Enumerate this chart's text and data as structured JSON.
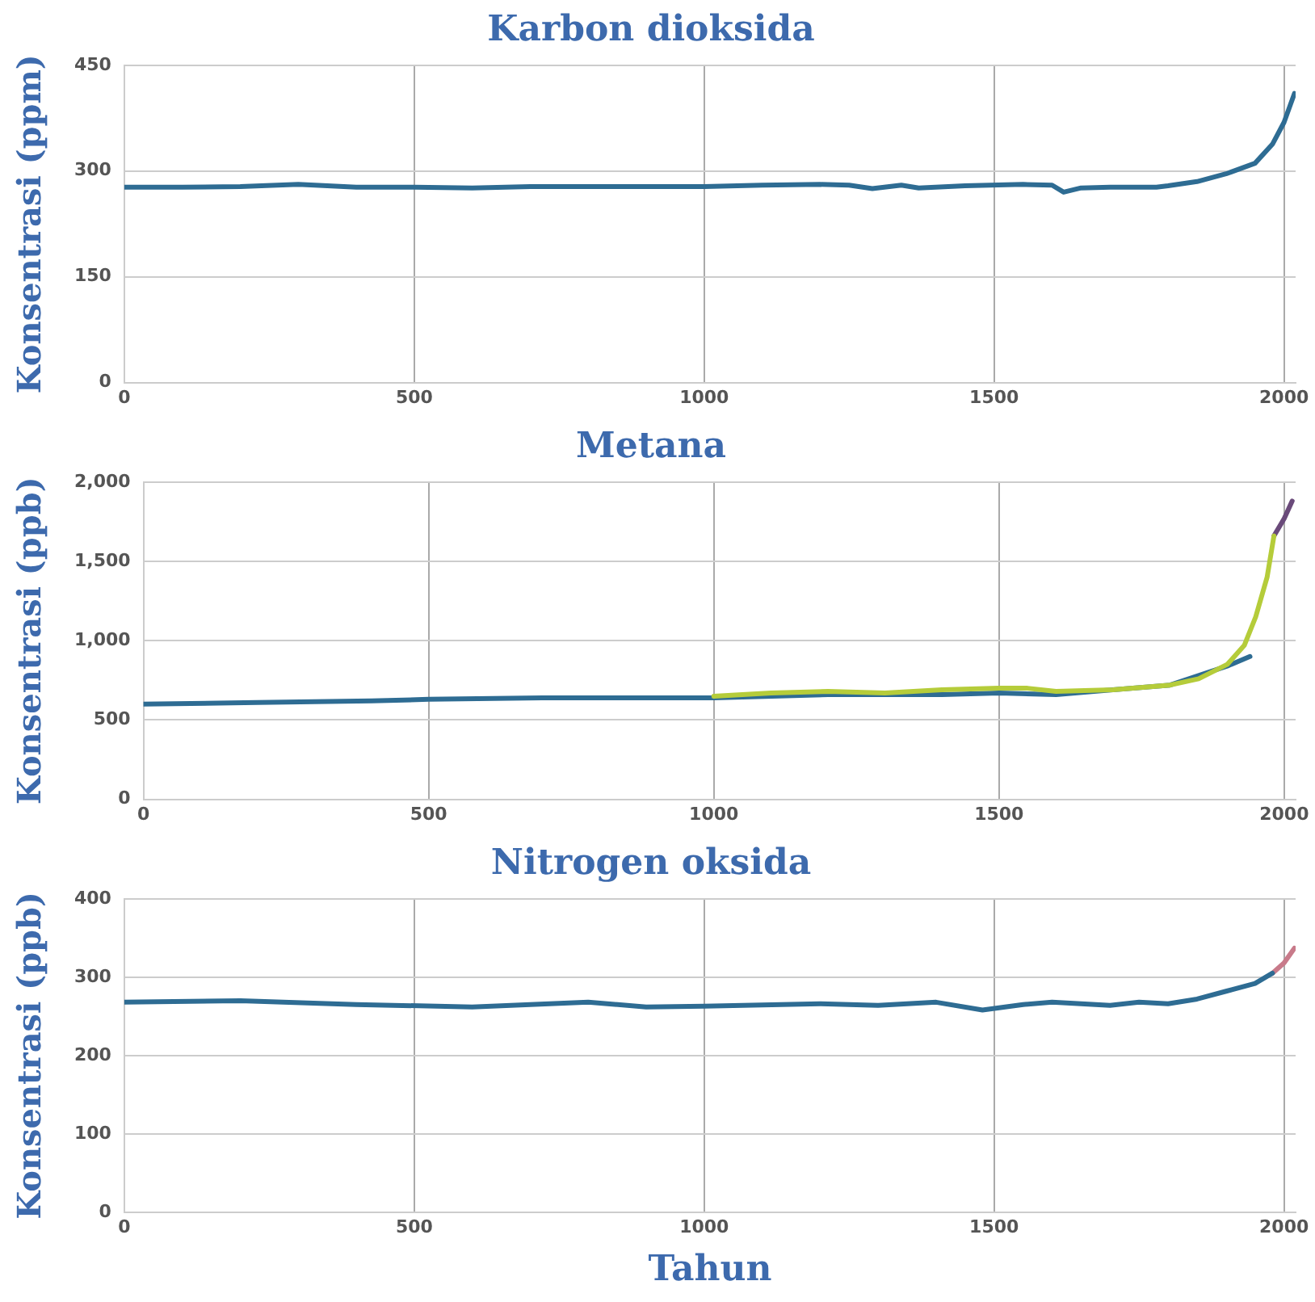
{
  "chart_data": [
    {
      "type": "line",
      "title": "Karbon dioksida",
      "ylabel": "Konsentrasi (ppm)",
      "xlim": [
        0,
        2020
      ],
      "xticks": [
        0,
        500,
        1000,
        1500,
        2000
      ],
      "ylim": [
        0,
        450
      ],
      "yticks": [
        0,
        150,
        300,
        450
      ],
      "grid": true,
      "legend": false,
      "marker": "none",
      "line_style": "solid",
      "series": [
        {
          "color": "#2e6c93",
          "x": [
            0,
            100,
            200,
            300,
            400,
            500,
            600,
            700,
            800,
            900,
            1000,
            1100,
            1200,
            1250,
            1290,
            1340,
            1370,
            1450,
            1550,
            1600,
            1620,
            1650,
            1700,
            1780,
            1800,
            1850,
            1900,
            1950,
            1980,
            2000,
            2018
          ],
          "values": [
            277,
            277,
            278,
            281,
            277,
            277,
            276,
            278,
            278,
            278,
            278,
            280,
            281,
            280,
            275,
            280,
            276,
            279,
            281,
            280,
            270,
            276,
            277,
            277,
            279,
            285,
            296,
            311,
            338,
            369,
            410
          ]
        }
      ]
    },
    {
      "type": "line",
      "title": "Metana",
      "ylabel": "Konsentrasi (ppb)",
      "xlim": [
        0,
        2020
      ],
      "xticks": [
        0,
        500,
        1000,
        1500,
        2000
      ],
      "ylim": [
        0,
        2000
      ],
      "yticks": [
        0,
        500,
        {
          "value": 1000,
          "label": "1,000"
        },
        {
          "value": 1500,
          "label": "1,500"
        },
        {
          "value": 2000,
          "label": "2,000"
        }
      ],
      "grid": true,
      "legend": false,
      "marker": "none",
      "line_style": "solid",
      "series": [
        {
          "color": "#b5cc3a",
          "x": [
            1000,
            1100,
            1200,
            1300,
            1400,
            1500,
            1550,
            1600,
            1700,
            1800,
            1850,
            1900,
            1930,
            1950,
            1970,
            1982
          ],
          "values": [
            650,
            670,
            680,
            670,
            690,
            700,
            700,
            680,
            690,
            720,
            760,
            850,
            970,
            1150,
            1400,
            1660
          ]
        },
        {
          "color": "#2e6c93",
          "x": [
            0,
            200,
            400,
            500,
            700,
            900,
            1000,
            1200,
            1400,
            1500,
            1600,
            1700,
            1800,
            1850,
            1900,
            1940
          ],
          "values": [
            600,
            610,
            620,
            630,
            640,
            640,
            640,
            660,
            660,
            670,
            660,
            690,
            720,
            780,
            840,
            900
          ]
        },
        {
          "color": "#6a4a7a",
          "x": [
            1982,
            2000,
            2014
          ],
          "values": [
            1660,
            1770,
            1880
          ]
        }
      ]
    },
    {
      "type": "line",
      "title": "Nitrogen oksida",
      "ylabel": "Konsentrasi (ppb)",
      "xlabel": "Tahun",
      "xlim": [
        0,
        2020
      ],
      "xticks": [
        0,
        500,
        1000,
        1500,
        2000
      ],
      "ylim": [
        0,
        400
      ],
      "yticks": [
        0,
        100,
        200,
        300,
        400
      ],
      "grid": true,
      "legend": false,
      "marker": "none",
      "line_style": "solid",
      "series": [
        {
          "color": "#2e6c93",
          "x": [
            0,
            200,
            400,
            600,
            800,
            900,
            1000,
            1200,
            1300,
            1400,
            1480,
            1550,
            1600,
            1700,
            1750,
            1800,
            1850,
            1900,
            1950,
            1980
          ],
          "values": [
            268,
            270,
            265,
            262,
            268,
            262,
            263,
            266,
            264,
            268,
            258,
            265,
            268,
            264,
            268,
            266,
            272,
            282,
            292,
            305
          ]
        },
        {
          "color": "#c87a8a",
          "x": [
            1980,
            2000,
            2018
          ],
          "values": [
            305,
            318,
            337
          ]
        }
      ]
    }
  ]
}
